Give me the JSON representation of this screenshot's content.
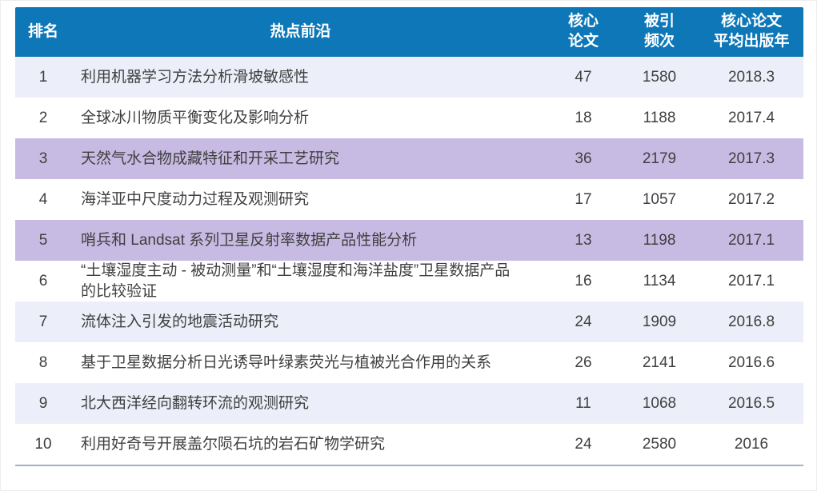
{
  "table": {
    "columns": [
      {
        "key": "rank",
        "label": "排名"
      },
      {
        "key": "topic",
        "label": "热点前沿"
      },
      {
        "key": "core_papers",
        "label": "核心\n论文"
      },
      {
        "key": "citations",
        "label": "被引\n频次"
      },
      {
        "key": "avg_year",
        "label": "核心论文\n平均出版年"
      }
    ],
    "rows": [
      {
        "rank": "1",
        "topic": "利用机器学习方法分析滑坡敏感性",
        "core_papers": "47",
        "citations": "1580",
        "avg_year": "2018.3",
        "bg": "light"
      },
      {
        "rank": "2",
        "topic": "全球冰川物质平衡变化及影响分析",
        "core_papers": "18",
        "citations": "1188",
        "avg_year": "2017.4",
        "bg": "white"
      },
      {
        "rank": "3",
        "topic": "天然气水合物成藏特征和开采工艺研究",
        "core_papers": "36",
        "citations": "2179",
        "avg_year": "2017.3",
        "bg": "purple"
      },
      {
        "rank": "4",
        "topic": "海洋亚中尺度动力过程及观测研究",
        "core_papers": "17",
        "citations": "1057",
        "avg_year": "2017.2",
        "bg": "white"
      },
      {
        "rank": "5",
        "topic": "哨兵和 Landsat 系列卫星反射率数据产品性能分析",
        "core_papers": "13",
        "citations": "1198",
        "avg_year": "2017.1",
        "bg": "purple"
      },
      {
        "rank": "6",
        "topic": "“土壤湿度主动 - 被动测量”和“土壤湿度和海洋盐度”卫星数据产品的比较验证",
        "core_papers": "16",
        "citations": "1134",
        "avg_year": "2017.1",
        "bg": "white"
      },
      {
        "rank": "7",
        "topic": "流体注入引发的地震活动研究",
        "core_papers": "24",
        "citations": "1909",
        "avg_year": "2016.8",
        "bg": "light"
      },
      {
        "rank": "8",
        "topic": "基于卫星数据分析日光诱导叶绿素荧光与植被光合作用的关系",
        "core_papers": "26",
        "citations": "2141",
        "avg_year": "2016.6",
        "bg": "white"
      },
      {
        "rank": "9",
        "topic": "北大西洋经向翻转环流的观测研究",
        "core_papers": "11",
        "citations": "1068",
        "avg_year": "2016.5",
        "bg": "light"
      },
      {
        "rank": "10",
        "topic": "利用好奇号开展盖尔陨石坑的岩石矿物学研究",
        "core_papers": "24",
        "citations": "2580",
        "avg_year": "2016",
        "bg": "white"
      }
    ]
  },
  "theme": {
    "header_bg": "#0d77b7",
    "header_text": "#ffffff",
    "row_light": "#eceff9",
    "row_purple": "#c8bbe3",
    "text": "#3f3f3f",
    "divider": "#a3b2c2"
  }
}
